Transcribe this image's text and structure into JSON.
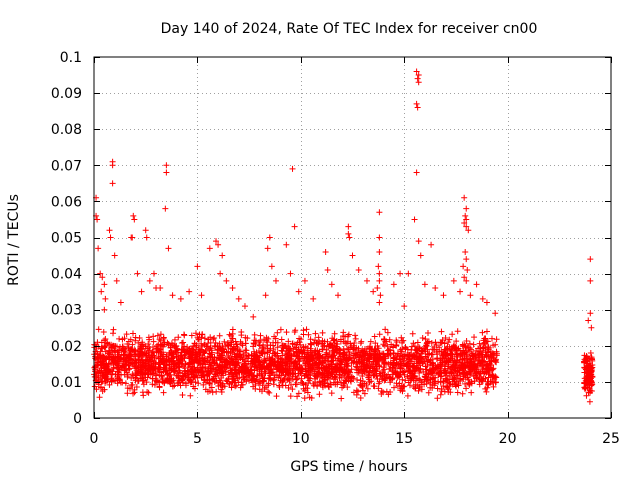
{
  "chart_data": {
    "type": "scatter",
    "title": "Day 140 of 2024, Rate Of TEC Index for receiver cn00",
    "xlabel": "GPS time / hours",
    "ylabel": "ROTI / TECUs",
    "xlim": [
      0,
      25
    ],
    "ylim": [
      0,
      0.1
    ],
    "x_ticks": [
      0,
      5,
      10,
      15,
      20,
      25
    ],
    "y_ticks": [
      0,
      0.01,
      0.02,
      0.03,
      0.04,
      0.05,
      0.06,
      0.07,
      0.08,
      0.09,
      0.1
    ],
    "x_tick_labels": [
      "0",
      "5",
      "10",
      "15",
      "20",
      "25"
    ],
    "y_tick_labels": [
      "0",
      "0.01",
      "0.02",
      "0.03",
      "0.04",
      "0.05",
      "0.06",
      "0.07",
      "0.08",
      "0.09",
      "0.1"
    ],
    "grid": true,
    "legend": "none",
    "marker": "+",
    "point_color": "#ff0000",
    "dense_bands": [
      {
        "x_range": [
          0.0,
          19.5
        ],
        "y_range": [
          0.004,
          0.026
        ],
        "note": "continuous dense band of points"
      },
      {
        "x_range": [
          23.7,
          24.1
        ],
        "y_range": [
          0.004,
          0.02
        ],
        "note": "short dense cluster"
      }
    ],
    "points": [
      [
        0.1,
        0.061
      ],
      [
        0.1,
        0.056
      ],
      [
        0.15,
        0.055
      ],
      [
        0.2,
        0.047
      ],
      [
        0.3,
        0.04
      ],
      [
        0.4,
        0.039
      ],
      [
        0.5,
        0.037
      ],
      [
        0.35,
        0.035
      ],
      [
        0.5,
        0.03
      ],
      [
        0.55,
        0.033
      ],
      [
        0.9,
        0.071
      ],
      [
        0.9,
        0.07
      ],
      [
        0.9,
        0.065
      ],
      [
        0.75,
        0.052
      ],
      [
        0.8,
        0.05
      ],
      [
        1.0,
        0.045
      ],
      [
        1.1,
        0.038
      ],
      [
        1.3,
        0.032
      ],
      [
        1.9,
        0.056
      ],
      [
        1.95,
        0.055
      ],
      [
        1.8,
        0.05
      ],
      [
        1.85,
        0.05
      ],
      [
        2.1,
        0.04
      ],
      [
        2.3,
        0.035
      ],
      [
        2.5,
        0.052
      ],
      [
        2.55,
        0.05
      ],
      [
        2.7,
        0.038
      ],
      [
        2.9,
        0.04
      ],
      [
        3.0,
        0.036
      ],
      [
        3.5,
        0.07
      ],
      [
        3.5,
        0.068
      ],
      [
        3.45,
        0.058
      ],
      [
        3.6,
        0.047
      ],
      [
        3.2,
        0.036
      ],
      [
        3.8,
        0.034
      ],
      [
        4.2,
        0.033
      ],
      [
        4.6,
        0.035
      ],
      [
        5.0,
        0.042
      ],
      [
        5.2,
        0.034
      ],
      [
        5.6,
        0.047
      ],
      [
        5.9,
        0.049
      ],
      [
        6.0,
        0.048
      ],
      [
        6.2,
        0.045
      ],
      [
        6.1,
        0.04
      ],
      [
        6.4,
        0.038
      ],
      [
        6.7,
        0.036
      ],
      [
        7.0,
        0.033
      ],
      [
        7.3,
        0.031
      ],
      [
        7.7,
        0.028
      ],
      [
        8.5,
        0.05
      ],
      [
        8.4,
        0.047
      ],
      [
        8.6,
        0.042
      ],
      [
        8.8,
        0.038
      ],
      [
        8.3,
        0.034
      ],
      [
        9.3,
        0.048
      ],
      [
        9.6,
        0.069
      ],
      [
        9.7,
        0.053
      ],
      [
        9.5,
        0.04
      ],
      [
        9.9,
        0.035
      ],
      [
        10.2,
        0.038
      ],
      [
        10.6,
        0.033
      ],
      [
        11.2,
        0.046
      ],
      [
        11.3,
        0.041
      ],
      [
        11.5,
        0.037
      ],
      [
        11.8,
        0.034
      ],
      [
        12.3,
        0.053
      ],
      [
        12.3,
        0.051
      ],
      [
        12.35,
        0.05
      ],
      [
        12.5,
        0.045
      ],
      [
        12.8,
        0.041
      ],
      [
        13.2,
        0.038
      ],
      [
        13.5,
        0.035
      ],
      [
        13.8,
        0.057
      ],
      [
        13.8,
        0.05
      ],
      [
        13.8,
        0.046
      ],
      [
        13.75,
        0.042
      ],
      [
        13.8,
        0.04
      ],
      [
        13.8,
        0.038
      ],
      [
        13.7,
        0.036
      ],
      [
        13.85,
        0.034
      ],
      [
        13.8,
        0.032
      ],
      [
        14.5,
        0.037
      ],
      [
        14.8,
        0.04
      ],
      [
        15.0,
        0.031
      ],
      [
        15.2,
        0.04
      ],
      [
        15.6,
        0.096
      ],
      [
        15.7,
        0.095
      ],
      [
        15.65,
        0.094
      ],
      [
        15.7,
        0.093
      ],
      [
        15.6,
        0.087
      ],
      [
        15.65,
        0.086
      ],
      [
        15.6,
        0.068
      ],
      [
        15.5,
        0.055
      ],
      [
        15.7,
        0.049
      ],
      [
        15.8,
        0.045
      ],
      [
        16.0,
        0.037
      ],
      [
        16.3,
        0.048
      ],
      [
        16.5,
        0.036
      ],
      [
        16.9,
        0.034
      ],
      [
        17.4,
        0.038
      ],
      [
        17.9,
        0.061
      ],
      [
        18.0,
        0.058
      ],
      [
        17.95,
        0.056
      ],
      [
        18.0,
        0.055
      ],
      [
        17.9,
        0.054
      ],
      [
        18.0,
        0.053
      ],
      [
        18.1,
        0.052
      ],
      [
        17.95,
        0.046
      ],
      [
        18.0,
        0.044
      ],
      [
        17.85,
        0.042
      ],
      [
        18.05,
        0.041
      ],
      [
        17.9,
        0.039
      ],
      [
        18.0,
        0.038
      ],
      [
        17.7,
        0.035
      ],
      [
        18.2,
        0.034
      ],
      [
        18.5,
        0.037
      ],
      [
        18.8,
        0.033
      ],
      [
        19.0,
        0.032
      ],
      [
        19.4,
        0.029
      ],
      [
        24.0,
        0.044
      ],
      [
        24.0,
        0.038
      ],
      [
        24.0,
        0.029
      ],
      [
        23.9,
        0.027
      ],
      [
        24.05,
        0.025
      ]
    ]
  }
}
